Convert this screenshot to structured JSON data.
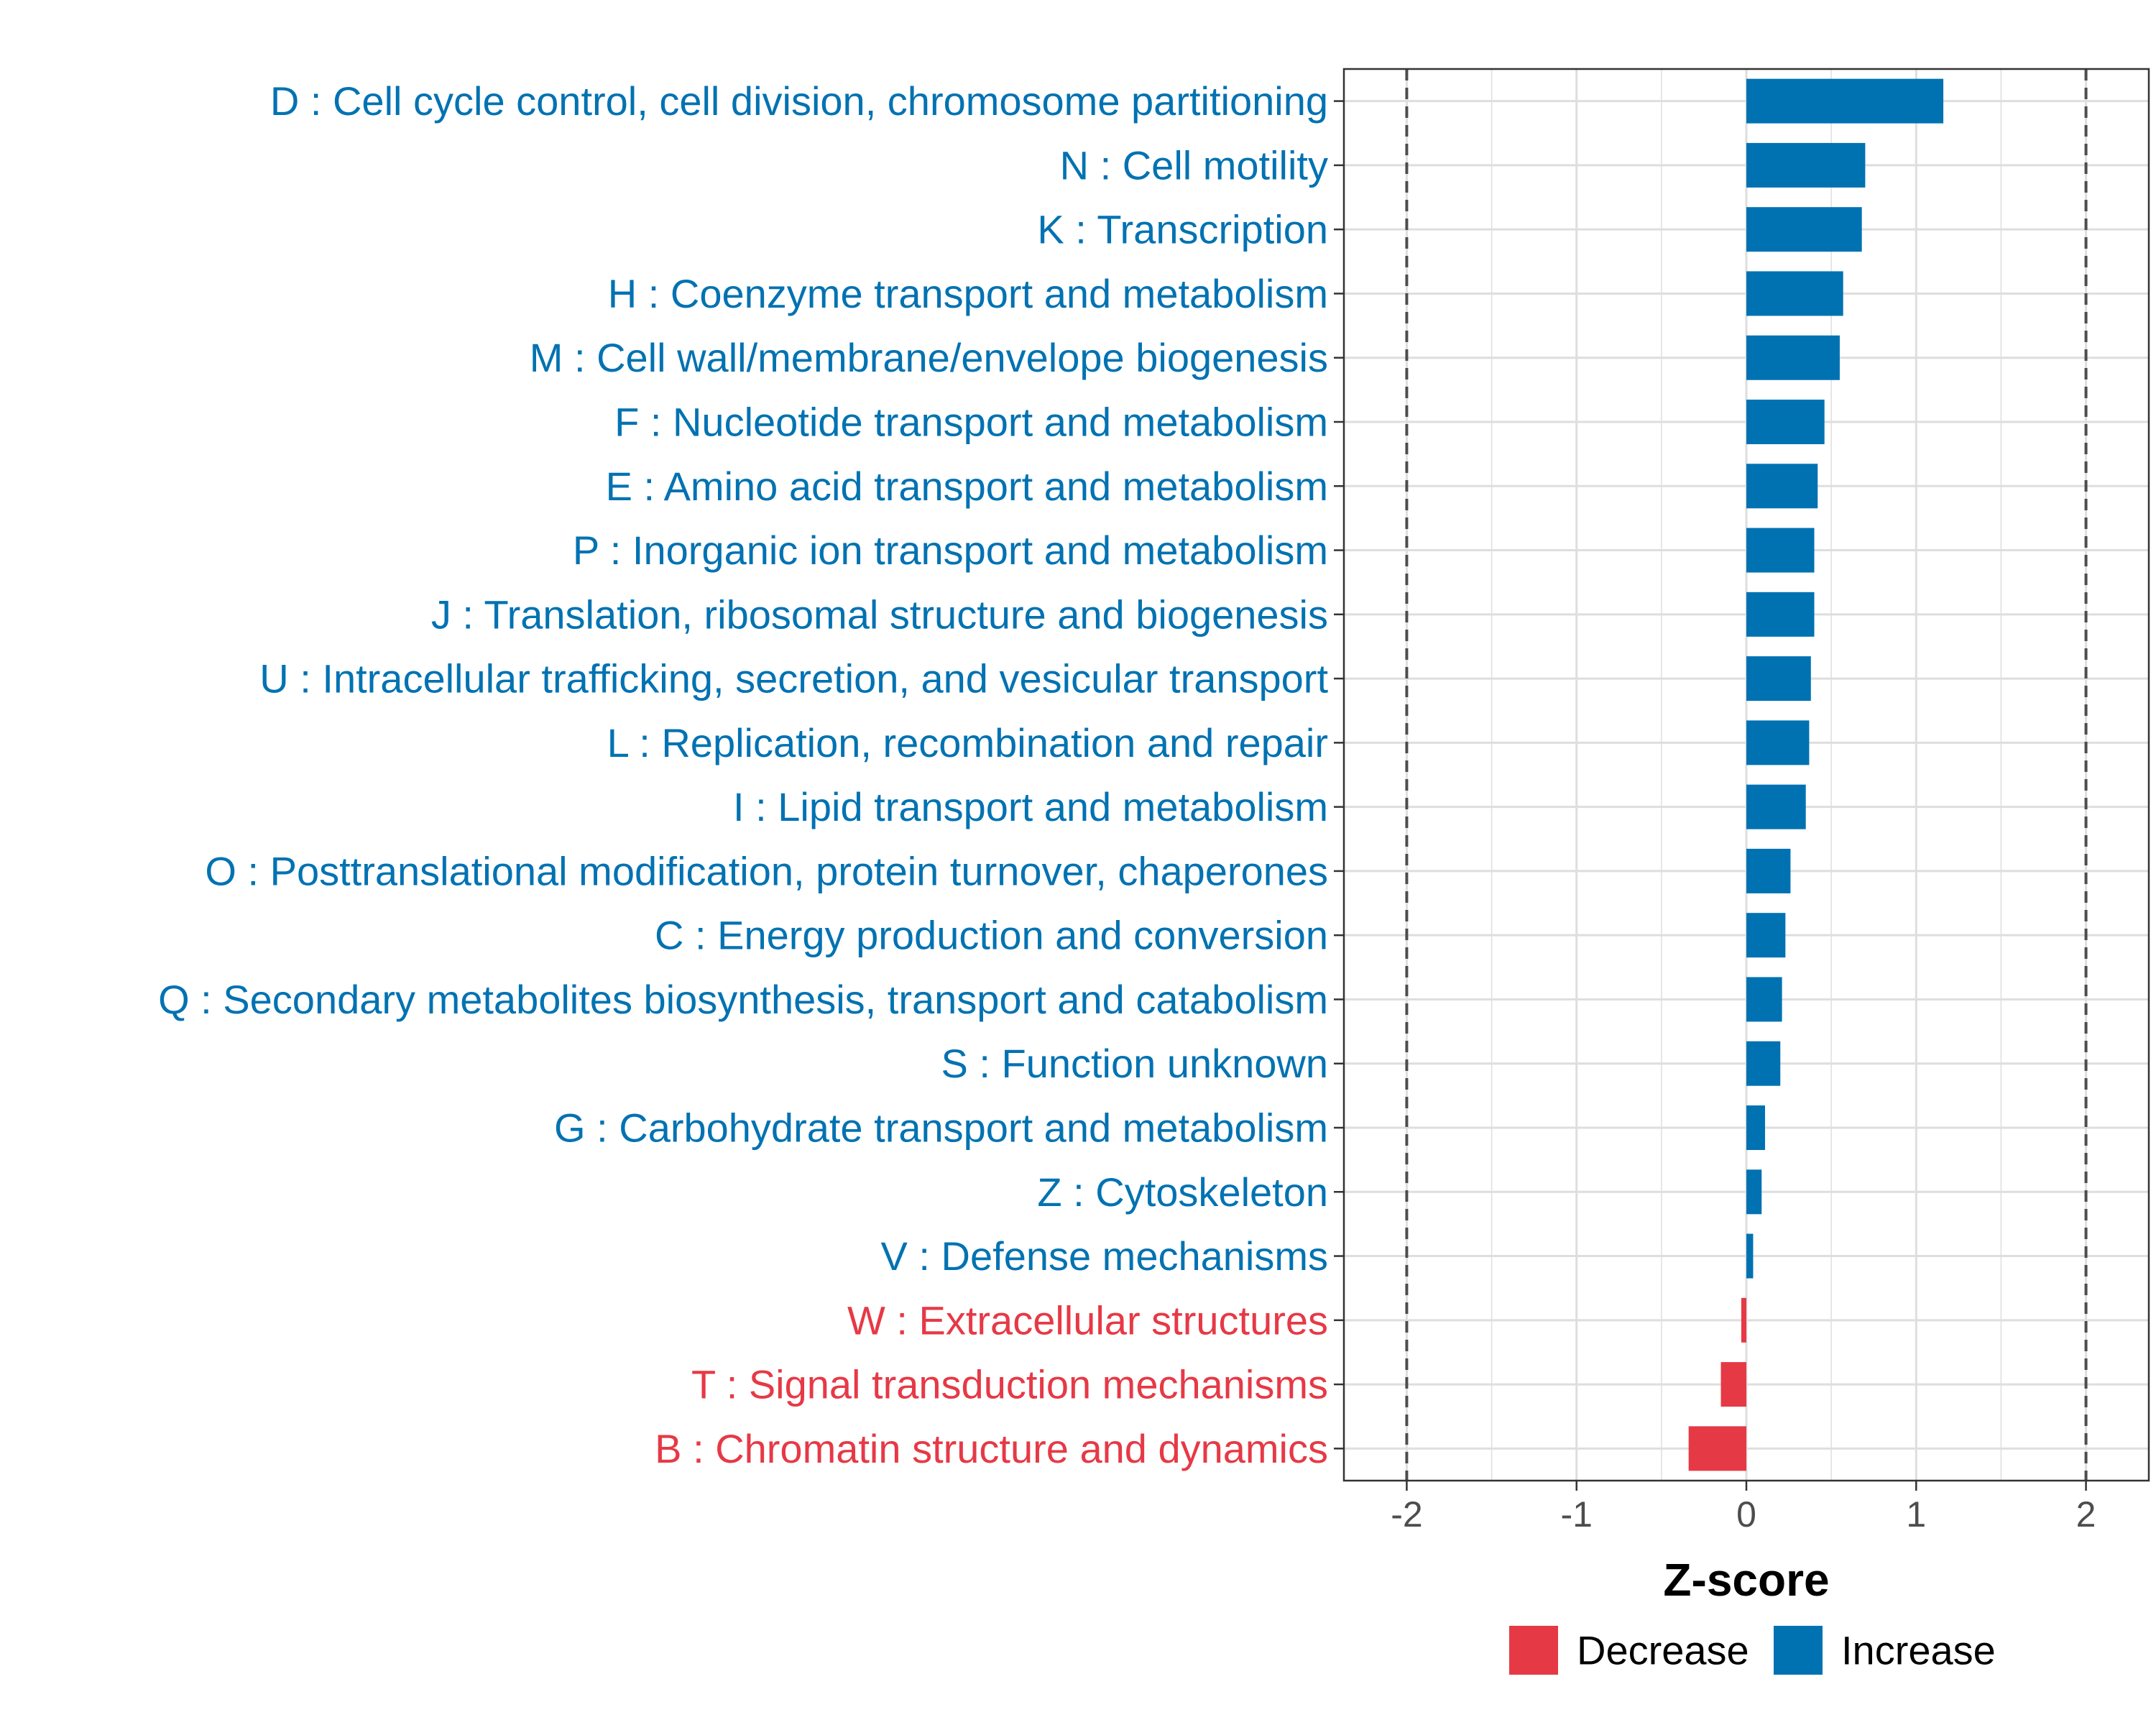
{
  "chart_data": {
    "type": "bar",
    "orientation": "horizontal",
    "xlabel": "Z-score",
    "xlim": [
      -2.37,
      2.37
    ],
    "xticks": [
      -2,
      -1,
      0,
      1,
      2
    ],
    "xtick_labels": [
      "-2",
      "-1",
      "0",
      "1",
      "2"
    ],
    "reference_lines": [
      -2,
      2
    ],
    "grid": true,
    "legend": {
      "position": "bottom",
      "entries": [
        {
          "label": "Decrease",
          "color": "#E63946"
        },
        {
          "label": "Increase",
          "color": "#0072B2"
        }
      ]
    },
    "categories": [
      "D : Cell cycle control, cell division, chromosome partitioning",
      "N : Cell motility",
      "K : Transcription",
      "H : Coenzyme transport and metabolism",
      "M : Cell wall/membrane/envelope biogenesis",
      "F : Nucleotide transport and metabolism",
      "E : Amino acid transport and metabolism",
      "P : Inorganic ion transport and metabolism",
      "J : Translation, ribosomal structure and biogenesis",
      "U : Intracellular trafficking, secretion, and vesicular transport",
      "L : Replication, recombination and repair",
      "I : Lipid transport and metabolism",
      "O : Posttranslational modification, protein turnover, chaperones",
      "C : Energy production and conversion",
      "Q : Secondary metabolites biosynthesis, transport and catabolism",
      "S : Function unknown",
      "G : Carbohydrate transport and metabolism",
      "Z : Cytoskeleton",
      "V : Defense mechanisms",
      "W : Extracellular structures",
      "T : Signal transduction mechanisms",
      "B : Chromatin structure and dynamics"
    ],
    "values": [
      1.16,
      0.7,
      0.68,
      0.57,
      0.55,
      0.46,
      0.42,
      0.4,
      0.4,
      0.38,
      0.37,
      0.35,
      0.26,
      0.23,
      0.21,
      0.2,
      0.11,
      0.09,
      0.04,
      -0.03,
      -0.15,
      -0.34
    ],
    "direction": [
      "Increase",
      "Increase",
      "Increase",
      "Increase",
      "Increase",
      "Increase",
      "Increase",
      "Increase",
      "Increase",
      "Increase",
      "Increase",
      "Increase",
      "Increase",
      "Increase",
      "Increase",
      "Increase",
      "Increase",
      "Increase",
      "Increase",
      "Decrease",
      "Decrease",
      "Decrease"
    ]
  }
}
